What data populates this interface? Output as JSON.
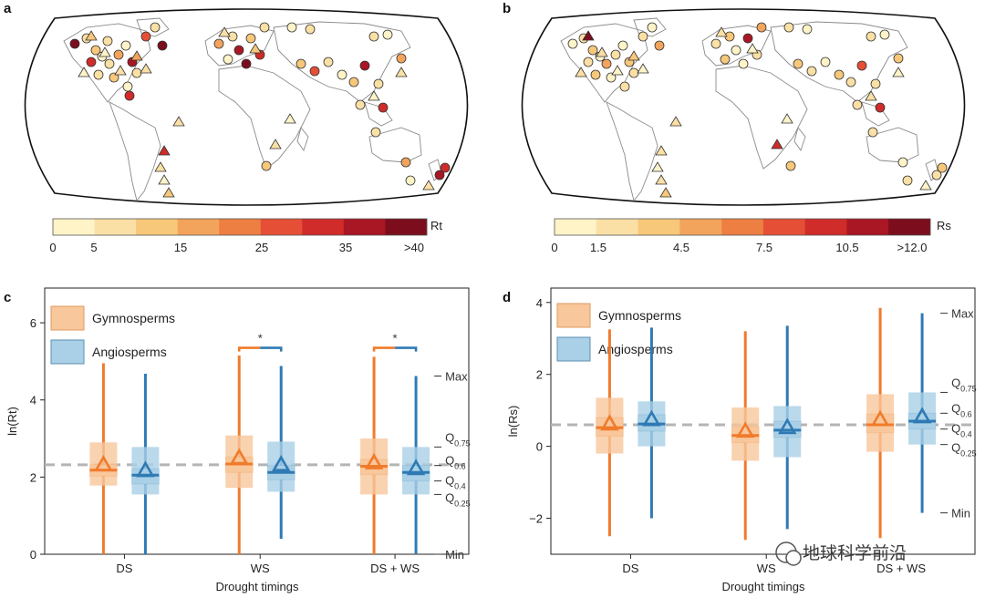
{
  "panels": {
    "a": {
      "letter": "a"
    },
    "b": {
      "letter": "b"
    },
    "c": {
      "letter": "c"
    },
    "d": {
      "letter": "d"
    }
  },
  "colors": {
    "gymno_line": "#f07b2b",
    "gymno_box": "#f8c79c",
    "angio_line": "#2f7ab5",
    "angio_box": "#a9d0e6",
    "median_dash": "#b5b5b5",
    "land_outline": "#888888"
  },
  "colorbar_a": {
    "label": "Rt",
    "ticks": [
      "0",
      "5",
      "15",
      "25",
      "35",
      ">40"
    ],
    "colors": [
      "#fff3c8",
      "#fbe0a5",
      "#f7c77a",
      "#f3a45c",
      "#ee7f43",
      "#e44f35",
      "#cf2c2a",
      "#a91624",
      "#7b0d1d"
    ]
  },
  "colorbar_b": {
    "label": "Rs",
    "ticks": [
      "0",
      "1.5",
      "4.5",
      "7.5",
      "10.5",
      ">12.0"
    ],
    "colors": [
      "#fff3c8",
      "#fbe0a5",
      "#f7c77a",
      "#f3a45c",
      "#ee7f43",
      "#e44f35",
      "#cf2c2a",
      "#a91624",
      "#7b0d1d"
    ]
  },
  "legend": {
    "gymno": "Gymnosperms",
    "angio": "Angiosperms"
  },
  "quantile_labels": {
    "max": "Max",
    "min": "Min",
    "q75": "Q",
    "q75_sub": "0.75",
    "q6": "Q",
    "q6_sub": "0.6",
    "q4": "Q",
    "q4_sub": "0.4",
    "q25": "Q",
    "q25_sub": "0.25"
  },
  "significance_marker": "*",
  "watermark": "地球科学前沿",
  "chart_data": [
    {
      "panel": "c",
      "type": "box",
      "xlabel": "Drought timings",
      "ylabel": "ln(Rt)",
      "ylim": [
        0,
        6.9
      ],
      "yticks": [
        "0",
        "2",
        "4",
        "6"
      ],
      "ytick_values": [
        0,
        2,
        4,
        6
      ],
      "reference_line": 2.32,
      "categories": [
        "DS",
        "WS",
        "DS + WS"
      ],
      "series": [
        {
          "name": "Gymnosperms",
          "stats": [
            {
              "min": 0,
              "q25": 1.78,
              "q4": 2.02,
              "median": 2.18,
              "q6": 2.32,
              "q75": 2.9,
              "max": 4.95,
              "mean": 2.3
            },
            {
              "min": 0,
              "q25": 1.72,
              "q4": 2.12,
              "median": 2.34,
              "q6": 2.52,
              "q75": 3.08,
              "max": 5.15,
              "mean": 2.48
            },
            {
              "min": 0,
              "q25": 1.55,
              "q4": 2.06,
              "median": 2.28,
              "q6": 2.46,
              "q75": 3.0,
              "max": 5.12,
              "mean": 2.35
            }
          ]
        },
        {
          "name": "Angiosperms",
          "stats": [
            {
              "min": 0,
              "q25": 1.55,
              "q4": 1.82,
              "median": 2.05,
              "q6": 2.22,
              "q75": 2.78,
              "max": 4.68,
              "mean": 2.15
            },
            {
              "min": 0.4,
              "q25": 1.62,
              "q4": 1.93,
              "median": 2.12,
              "q6": 2.3,
              "q75": 2.92,
              "max": 4.88,
              "mean": 2.3
            },
            {
              "min": 0,
              "q25": 1.55,
              "q4": 1.9,
              "median": 2.12,
              "q6": 2.3,
              "q75": 2.78,
              "max": 4.62,
              "mean": 2.2
            }
          ]
        }
      ],
      "significance": [
        {
          "category": "WS",
          "y": 5.35
        },
        {
          "category": "DS + WS",
          "y": 5.35
        }
      ]
    },
    {
      "panel": "d",
      "type": "box",
      "xlabel": "Drought timings",
      "ylabel": "ln(Rs)",
      "ylim": [
        -3.0,
        4.4
      ],
      "yticks": [
        "−2",
        "0",
        "2",
        "4"
      ],
      "ytick_values": [
        -2,
        0,
        2,
        4
      ],
      "reference_line": 0.6,
      "categories": [
        "DS",
        "WS",
        "DS + WS"
      ],
      "series": [
        {
          "name": "Gymnosperms",
          "stats": [
            {
              "min": -2.5,
              "q25": -0.2,
              "q4": 0.28,
              "median": 0.52,
              "q6": 0.8,
              "q75": 1.35,
              "max": 3.25,
              "mean": 0.6
            },
            {
              "min": -2.6,
              "q25": -0.4,
              "q4": 0.1,
              "median": 0.3,
              "q6": 0.55,
              "q75": 1.08,
              "max": 3.2,
              "mean": 0.4
            },
            {
              "min": -2.55,
              "q25": -0.15,
              "q4": 0.38,
              "median": 0.6,
              "q6": 0.9,
              "q75": 1.45,
              "max": 3.85,
              "mean": 0.72
            }
          ]
        },
        {
          "name": "Angiosperms",
          "stats": [
            {
              "min": -2.0,
              "q25": 0.0,
              "q4": 0.42,
              "median": 0.62,
              "q6": 0.88,
              "q75": 1.25,
              "max": 3.3,
              "mean": 0.72
            },
            {
              "min": -2.3,
              "q25": -0.3,
              "q4": 0.25,
              "median": 0.45,
              "q6": 0.7,
              "q75": 1.12,
              "max": 3.35,
              "mean": 0.5
            },
            {
              "min": -1.85,
              "q25": 0.05,
              "q4": 0.48,
              "median": 0.7,
              "q6": 0.92,
              "q75": 1.5,
              "max": 3.7,
              "mean": 0.8
            }
          ]
        }
      ]
    }
  ]
}
